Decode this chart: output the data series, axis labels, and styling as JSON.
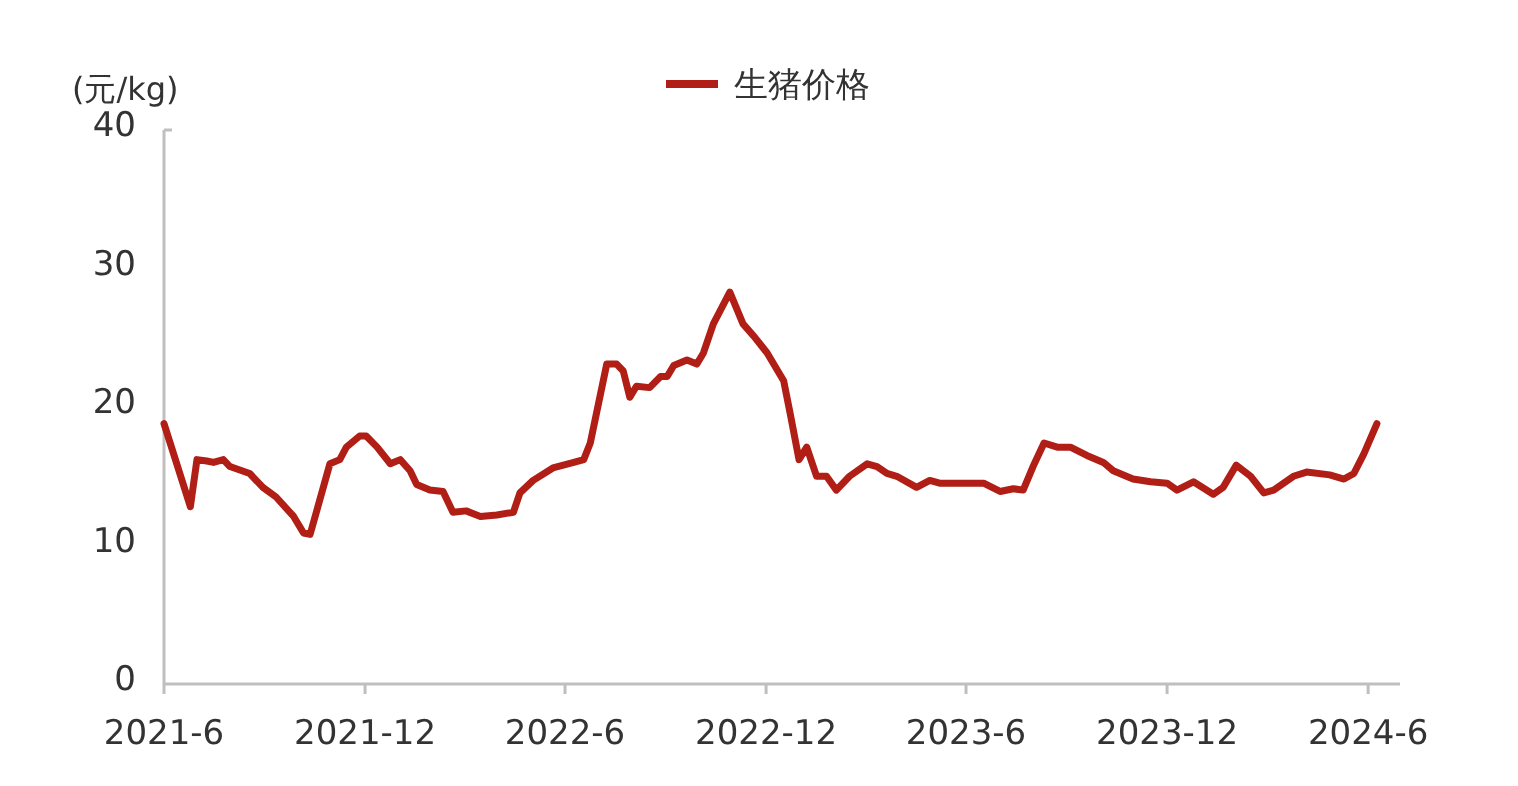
{
  "chart_data": {
    "type": "line",
    "ylabel": "(元/kg)",
    "legend": "top",
    "marker": "none",
    "line_style": "solid",
    "x": [
      "2021-06-01",
      "2021-06-25",
      "2021-07-01",
      "2021-07-10",
      "2021-07-16",
      "2021-07-25",
      "2021-07-31",
      "2021-08-18",
      "2021-08-30",
      "2021-09-11",
      "2021-09-27",
      "2021-10-06",
      "2021-10-12",
      "2021-10-30",
      "2021-11-08",
      "2021-11-14",
      "2021-11-26",
      "2021-12-02",
      "2021-12-12",
      "2021-12-24",
      "2022-01-02",
      "2022-01-11",
      "2022-01-17",
      "2022-01-29",
      "2022-02-10",
      "2022-02-19",
      "2022-03-03",
      "2022-03-16",
      "2022-03-31",
      "2022-04-15",
      "2022-04-21",
      "2022-05-03",
      "2022-05-21",
      "2022-06-09",
      "2022-06-18",
      "2022-06-24",
      "2022-07-09",
      "2022-07-18",
      "2022-07-24",
      "2022-07-30",
      "2022-08-05",
      "2022-08-17",
      "2022-08-27",
      "2022-09-02",
      "2022-09-08",
      "2022-09-20",
      "2022-09-29",
      "2022-10-05",
      "2022-10-14",
      "2022-10-29",
      "2022-11-10",
      "2022-11-20",
      "2022-12-02",
      "2022-12-17",
      "2022-12-23",
      "2022-12-31",
      "2023-01-07",
      "2023-01-16",
      "2023-01-25",
      "2023-02-03",
      "2023-02-15",
      "2023-03-03",
      "2023-03-12",
      "2023-03-21",
      "2023-03-30",
      "2023-04-17",
      "2023-04-29",
      "2023-05-08",
      "2023-05-24",
      "2023-06-17",
      "2023-07-02",
      "2023-07-14",
      "2023-07-23",
      "2023-08-01",
      "2023-08-11",
      "2023-08-23",
      "2023-09-04",
      "2023-09-19",
      "2023-10-04",
      "2023-10-13",
      "2023-10-31",
      "2023-11-16",
      "2023-12-01",
      "2023-12-10",
      "2023-12-25",
      "2024-01-12",
      "2024-01-21",
      "2024-02-02",
      "2024-02-15",
      "2024-02-27",
      "2024-03-07",
      "2024-03-25",
      "2024-04-06",
      "2024-04-27",
      "2024-05-10",
      "2024-05-19",
      "2024-05-28",
      "2024-06-09"
    ],
    "series": [
      {
        "name": "生猪价格",
        "color": "#b01e16",
        "values": [
          18.8,
          12.8,
          16.2,
          16.1,
          16.0,
          16.2,
          15.7,
          15.2,
          14.2,
          13.5,
          12.1,
          10.9,
          10.8,
          15.9,
          16.2,
          17.1,
          17.9,
          17.9,
          17.1,
          15.9,
          16.2,
          15.4,
          14.4,
          14.0,
          13.9,
          12.4,
          12.5,
          12.1,
          12.2,
          12.4,
          13.8,
          14.7,
          15.6,
          16.0,
          16.2,
          17.4,
          23.1,
          23.1,
          22.6,
          20.7,
          21.5,
          21.4,
          22.2,
          22.2,
          23.0,
          23.4,
          23.1,
          23.9,
          26.0,
          28.3,
          26.0,
          25.1,
          23.9,
          21.9,
          19.5,
          16.2,
          17.1,
          15.0,
          15.0,
          14.0,
          15.0,
          15.9,
          15.7,
          15.2,
          15.0,
          14.2,
          14.7,
          14.5,
          14.5,
          14.5,
          13.9,
          14.1,
          14.0,
          15.7,
          17.4,
          17.1,
          17.1,
          16.5,
          16.0,
          15.4,
          14.8,
          14.6,
          14.5,
          14.0,
          14.6,
          13.7,
          14.2,
          15.8,
          15.0,
          13.8,
          14.0,
          15.0,
          15.3,
          15.1,
          14.8,
          15.2,
          16.6,
          18.8
        ]
      }
    ],
    "xlim": [
      "2021-06-01",
      "2024-06-30"
    ],
    "xticks": [
      {
        "value": "2021-06-01",
        "label": "2021-6"
      },
      {
        "value": "2021-12-01",
        "label": "2021-12"
      },
      {
        "value": "2022-06-01",
        "label": "2022-6"
      },
      {
        "value": "2022-12-01",
        "label": "2022-12"
      },
      {
        "value": "2023-06-01",
        "label": "2023-6"
      },
      {
        "value": "2023-12-01",
        "label": "2023-12"
      },
      {
        "value": "2024-06-01",
        "label": "2024-6"
      }
    ],
    "ylim": [
      0,
      40
    ],
    "yticks": [
      0,
      10,
      20,
      30,
      40
    ]
  }
}
